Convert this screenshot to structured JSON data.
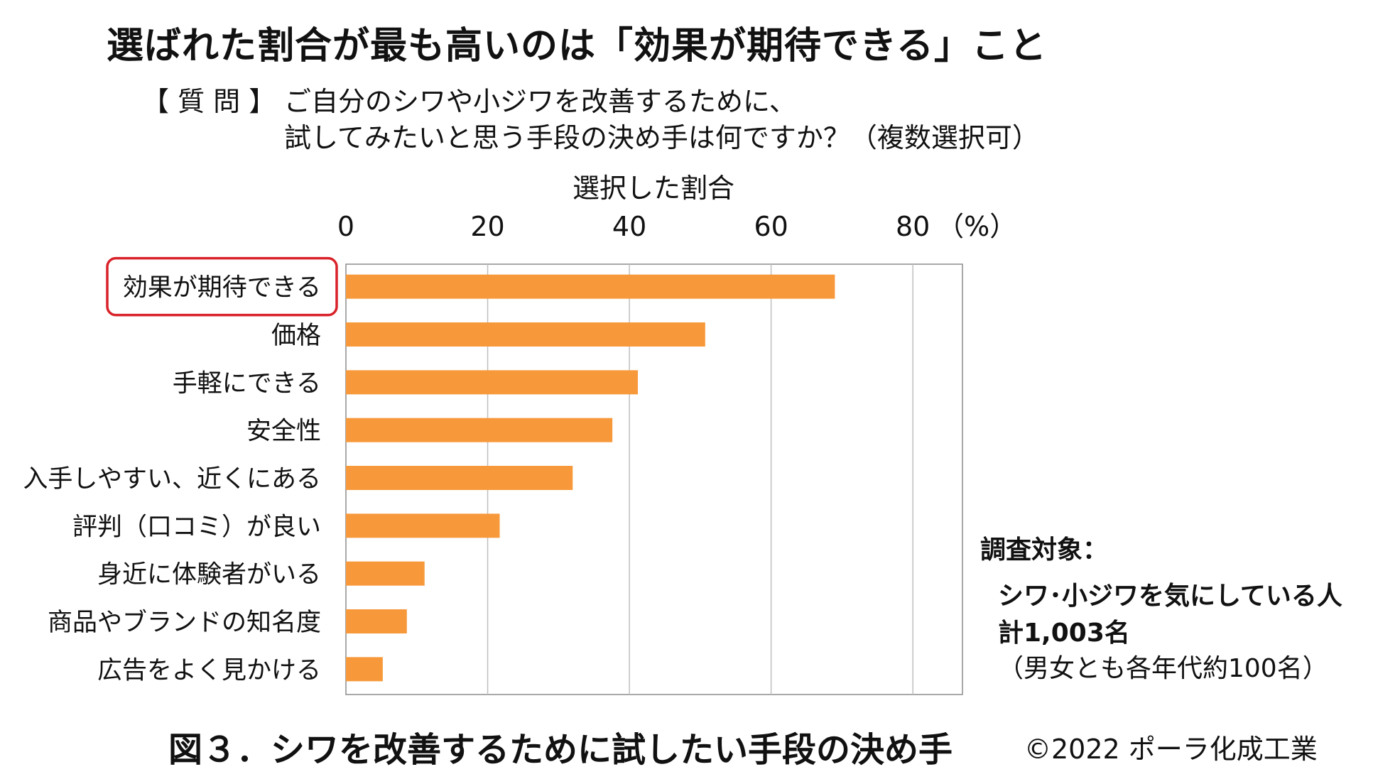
{
  "title": "選ばれた割合が最も高いのは「効果が期待できる」こと",
  "question": {
    "tag": "【 質 問 】",
    "line1": "ご自分のシワや小ジワを改善するために、",
    "line2": "試してみたいと思う手段の決め手は何ですか？（複数選択可）"
  },
  "chart_data": {
    "type": "bar",
    "orientation": "horizontal",
    "xlabel": "選択した割合",
    "unit": "（%）",
    "xlim": [
      0,
      80
    ],
    "ticks": [
      "0",
      "20",
      "40",
      "60",
      "80"
    ],
    "grid": true,
    "categories": [
      "効果が期待できる",
      "価格",
      "手軽にできる",
      "安全性",
      "入手しやすい、近くにある",
      "評判（口コミ）が良い",
      "身近に体験者がいる",
      "商品やブランドの知名度",
      "広告をよく見かける"
    ],
    "values": [
      69,
      50.7,
      41.2,
      37.6,
      32,
      21.7,
      11.1,
      8.6,
      5.2
    ],
    "highlighted_category": "効果が期待できる",
    "bar_color": "#F7993B",
    "highlight_color": "#D9222A"
  },
  "survey_target": {
    "title": "調査対象：",
    "line1": "シワ･小ジワを気にしている人",
    "line2": "計1,003名",
    "line3": "（男女とも各年代約100名）"
  },
  "caption": "図３．シワを改善するために試したい手段の決め手",
  "copyright": "©2022 ポーラ化成工業"
}
